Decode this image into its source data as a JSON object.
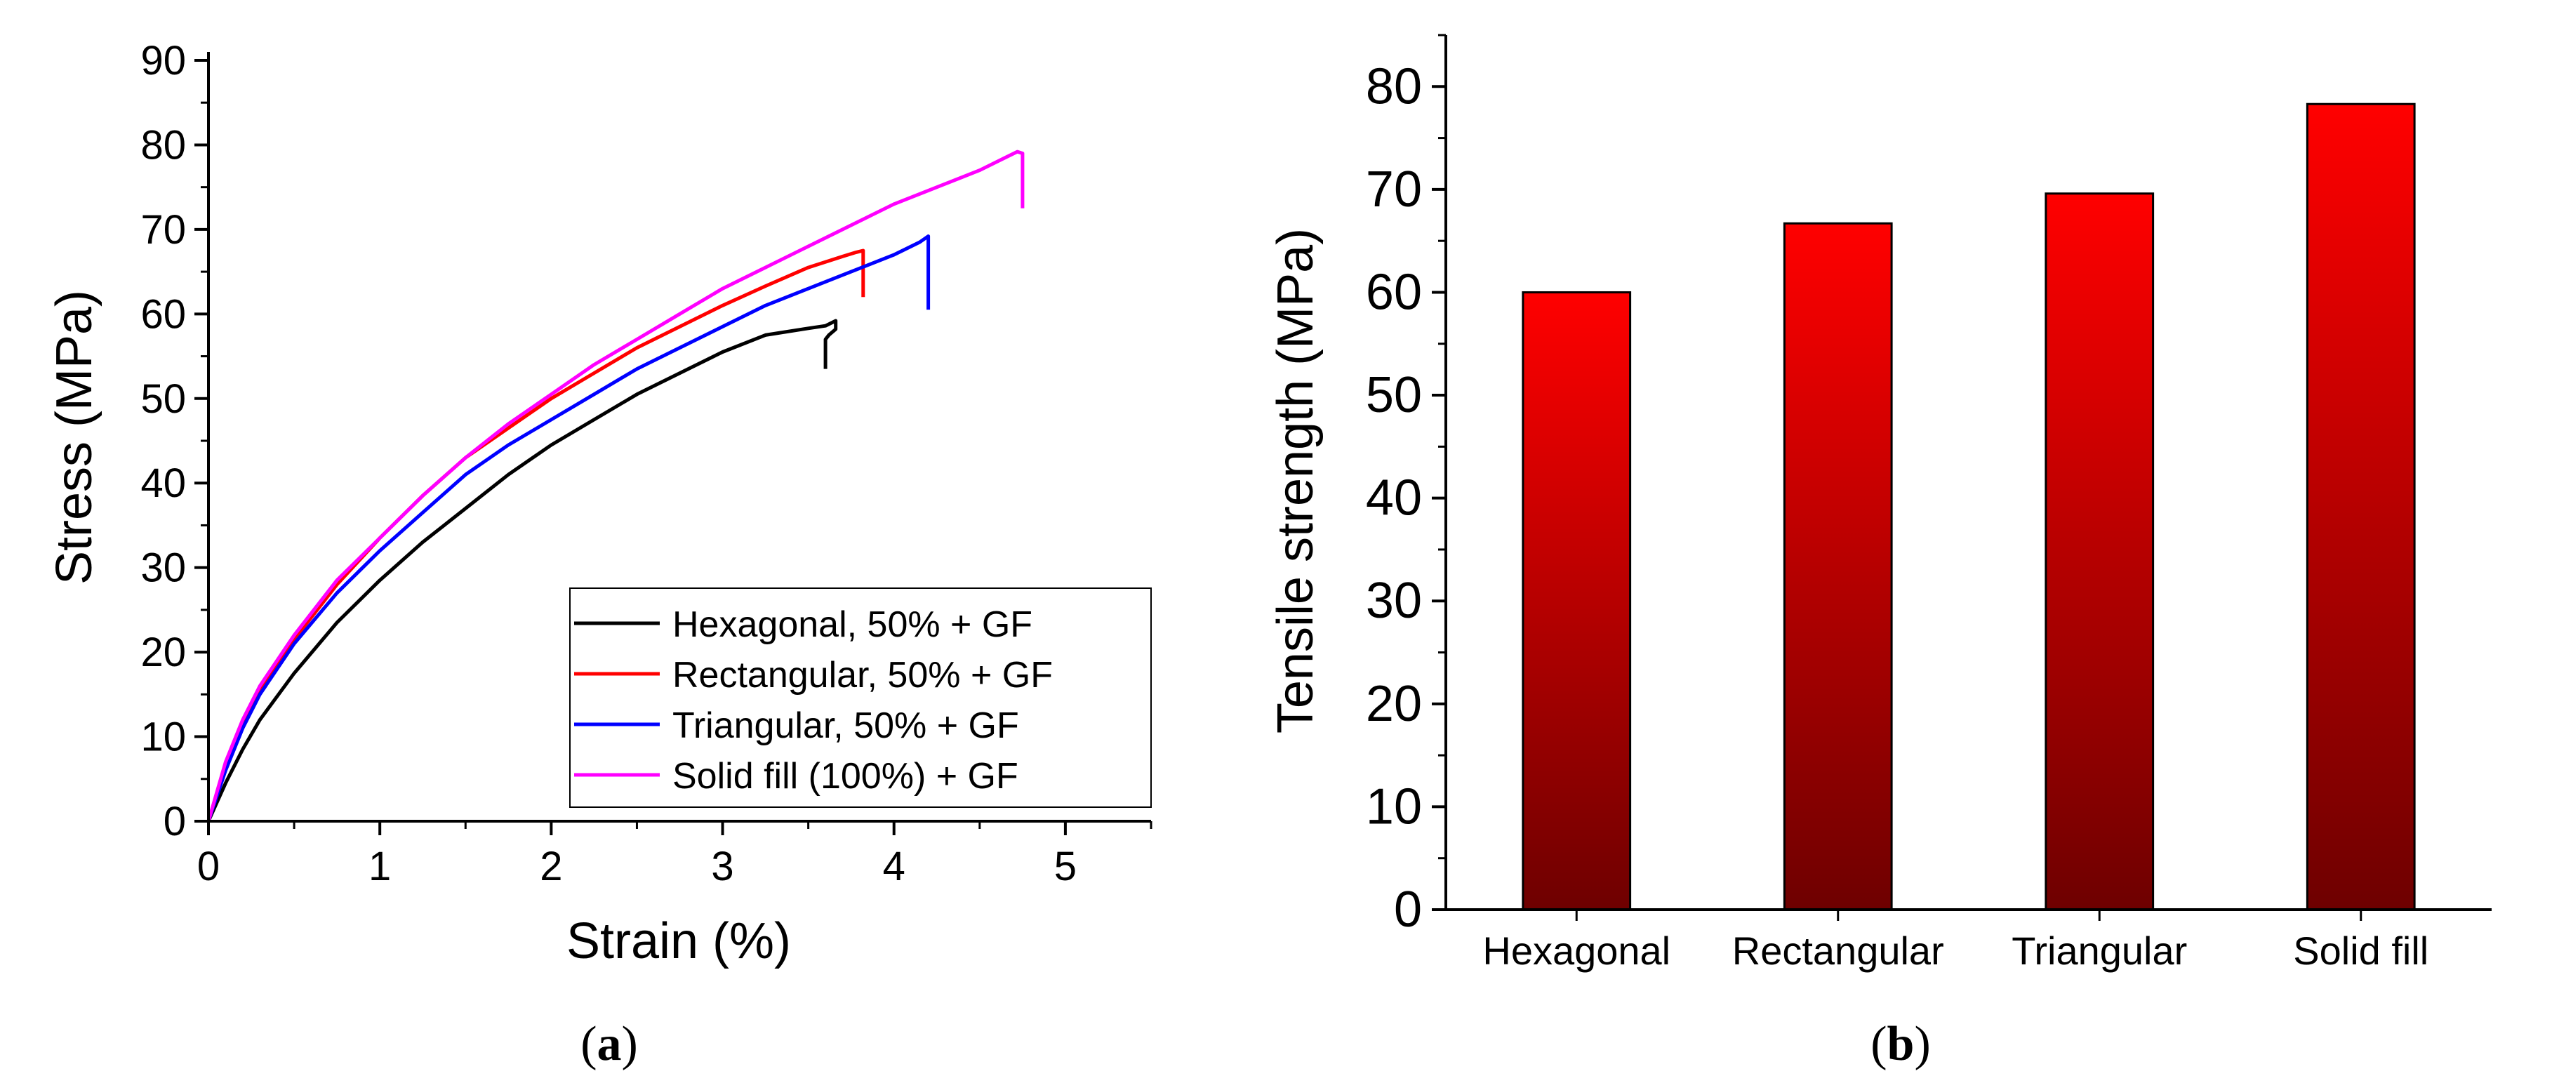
{
  "chart_data": [
    {
      "type": "line",
      "panel_label": "a",
      "title": "",
      "xlabel": "Strain (%)",
      "ylabel": "Stress (MPa)",
      "xlim": [
        0,
        5.5
      ],
      "ylim": [
        0,
        90
      ],
      "xticks": [
        "0",
        "1",
        "2",
        "3",
        "4",
        "5"
      ],
      "yticks": [
        "0",
        "10",
        "20",
        "30",
        "40",
        "50",
        "60",
        "70",
        "80",
        "90"
      ],
      "grid": false,
      "legend_position": "bottom-right",
      "series": [
        {
          "name": "Hexagonal, 50% + GF",
          "color": "#000000",
          "x": [
            0,
            0.1,
            0.2,
            0.3,
            0.5,
            0.75,
            1.0,
            1.25,
            1.5,
            1.75,
            2.0,
            2.25,
            2.5,
            2.75,
            3.0,
            3.25,
            3.5,
            3.6,
            3.66,
            3.66,
            3.62,
            3.6,
            3.6
          ],
          "y": [
            0,
            4.5,
            8.5,
            12,
            17.5,
            23.5,
            28.5,
            33,
            37,
            41,
            44.5,
            47.5,
            50.5,
            53,
            55.5,
            57.5,
            58.3,
            58.6,
            59.2,
            58.2,
            57.5,
            57,
            53.5
          ]
        },
        {
          "name": "Rectangular, 50% + GF",
          "color": "#ff0000",
          "x": [
            0,
            0.1,
            0.2,
            0.3,
            0.5,
            0.75,
            1.0,
            1.25,
            1.5,
            1.75,
            2.0,
            2.25,
            2.5,
            2.75,
            3.0,
            3.25,
            3.5,
            3.7,
            3.78,
            3.82,
            3.82
          ],
          "y": [
            0,
            6.5,
            11.5,
            15.5,
            21.5,
            28,
            33.5,
            38.5,
            43,
            46.5,
            50,
            53,
            56,
            58.5,
            61,
            63.3,
            65.5,
            66.8,
            67.3,
            67.5,
            62
          ]
        },
        {
          "name": "Triangular, 50% + GF",
          "color": "#0000ff",
          "x": [
            0,
            0.1,
            0.2,
            0.3,
            0.5,
            0.75,
            1.0,
            1.25,
            1.5,
            1.75,
            2.0,
            2.25,
            2.5,
            2.75,
            3.0,
            3.25,
            3.5,
            3.75,
            4.0,
            4.15,
            4.2,
            4.2
          ],
          "y": [
            0,
            6,
            11,
            15,
            21,
            27,
            32,
            36.5,
            41,
            44.5,
            47.5,
            50.5,
            53.5,
            56,
            58.5,
            61,
            63,
            65,
            67,
            68.5,
            69.2,
            60.5
          ]
        },
        {
          "name": "Solid fill (100%) + GF",
          "color": "#ff00ff",
          "x": [
            0,
            0.1,
            0.2,
            0.3,
            0.5,
            0.75,
            1.0,
            1.25,
            1.5,
            1.75,
            2.0,
            2.25,
            2.5,
            2.75,
            3.0,
            3.25,
            3.5,
            3.75,
            4.0,
            4.25,
            4.5,
            4.65,
            4.72,
            4.75,
            4.75
          ],
          "y": [
            0,
            7,
            12,
            16,
            22,
            28.5,
            33.5,
            38.5,
            43,
            47,
            50.5,
            54,
            57,
            60,
            63,
            65.5,
            68,
            70.5,
            73,
            75,
            77,
            78.5,
            79.2,
            79,
            72.5
          ]
        }
      ]
    },
    {
      "type": "bar",
      "panel_label": "b",
      "title": "",
      "xlabel": "",
      "ylabel": "Tensile strength (MPa)",
      "categories": [
        "Hexagonal",
        "Rectangular",
        "Triangular",
        "Solid fill"
      ],
      "values": [
        60,
        66.7,
        69.6,
        78.3
      ],
      "ylim": [
        0,
        85
      ],
      "yticks": [
        "0",
        "10",
        "20",
        "30",
        "40",
        "50",
        "60",
        "70",
        "80"
      ],
      "grid": false,
      "bar_color_top": "#ff0000",
      "bar_color_bottom": "#6e0000"
    }
  ],
  "captions": {
    "a": "a",
    "b": "b"
  }
}
